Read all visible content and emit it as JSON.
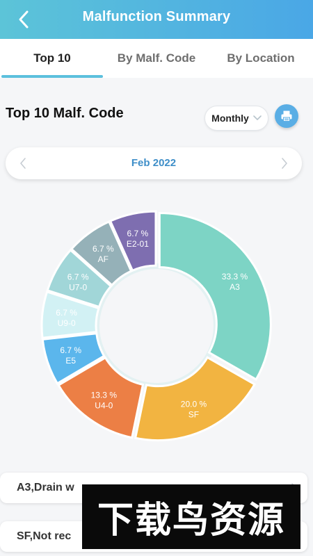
{
  "header": {
    "title": "Malfunction Summary"
  },
  "tabs": [
    {
      "label": "Top 10",
      "active": true
    },
    {
      "label": "By Malf. Code",
      "active": false
    },
    {
      "label": "By Location",
      "active": false
    }
  ],
  "section": {
    "title": "Top 10 Malf. Code"
  },
  "period": {
    "selected": "Monthly"
  },
  "date_nav": {
    "label": "Feb 2022"
  },
  "colors": {
    "accent": "#5cc0dd",
    "header_start": "#5cc4d8",
    "header_end": "#4aa7e6",
    "date_text": "#3e8ec8"
  },
  "chart_data": {
    "type": "pie",
    "title": "",
    "slices": [
      {
        "label": "A3",
        "value": 33.3,
        "display": "33.3 %",
        "color": "#7dd4c5"
      },
      {
        "label": "SF",
        "value": 20.0,
        "display": "20.0 %",
        "color": "#f2b441"
      },
      {
        "label": "U4-0",
        "value": 13.3,
        "display": "13.3 %",
        "color": "#ec7f45"
      },
      {
        "label": "E5",
        "value": 6.7,
        "display": "6.7 %",
        "color": "#5bb6ec"
      },
      {
        "label": "U9-0",
        "value": 6.7,
        "display": "6.7 %",
        "color": "#d2f1f4"
      },
      {
        "label": "U7-0",
        "value": 6.7,
        "display": "6.7 %",
        "color": "#a1d6d8"
      },
      {
        "label": "AF",
        "value": 6.7,
        "display": "6.7 %",
        "color": "#95b1b8"
      },
      {
        "label": "E2-01",
        "value": 6.7,
        "display": "6.7 %",
        "color": "#7e6eb0"
      }
    ]
  },
  "list": [
    {
      "text": "A3,Drain w"
    },
    {
      "text": "SF,Not rec"
    }
  ],
  "watermark": {
    "text": "下载鸟资源"
  }
}
